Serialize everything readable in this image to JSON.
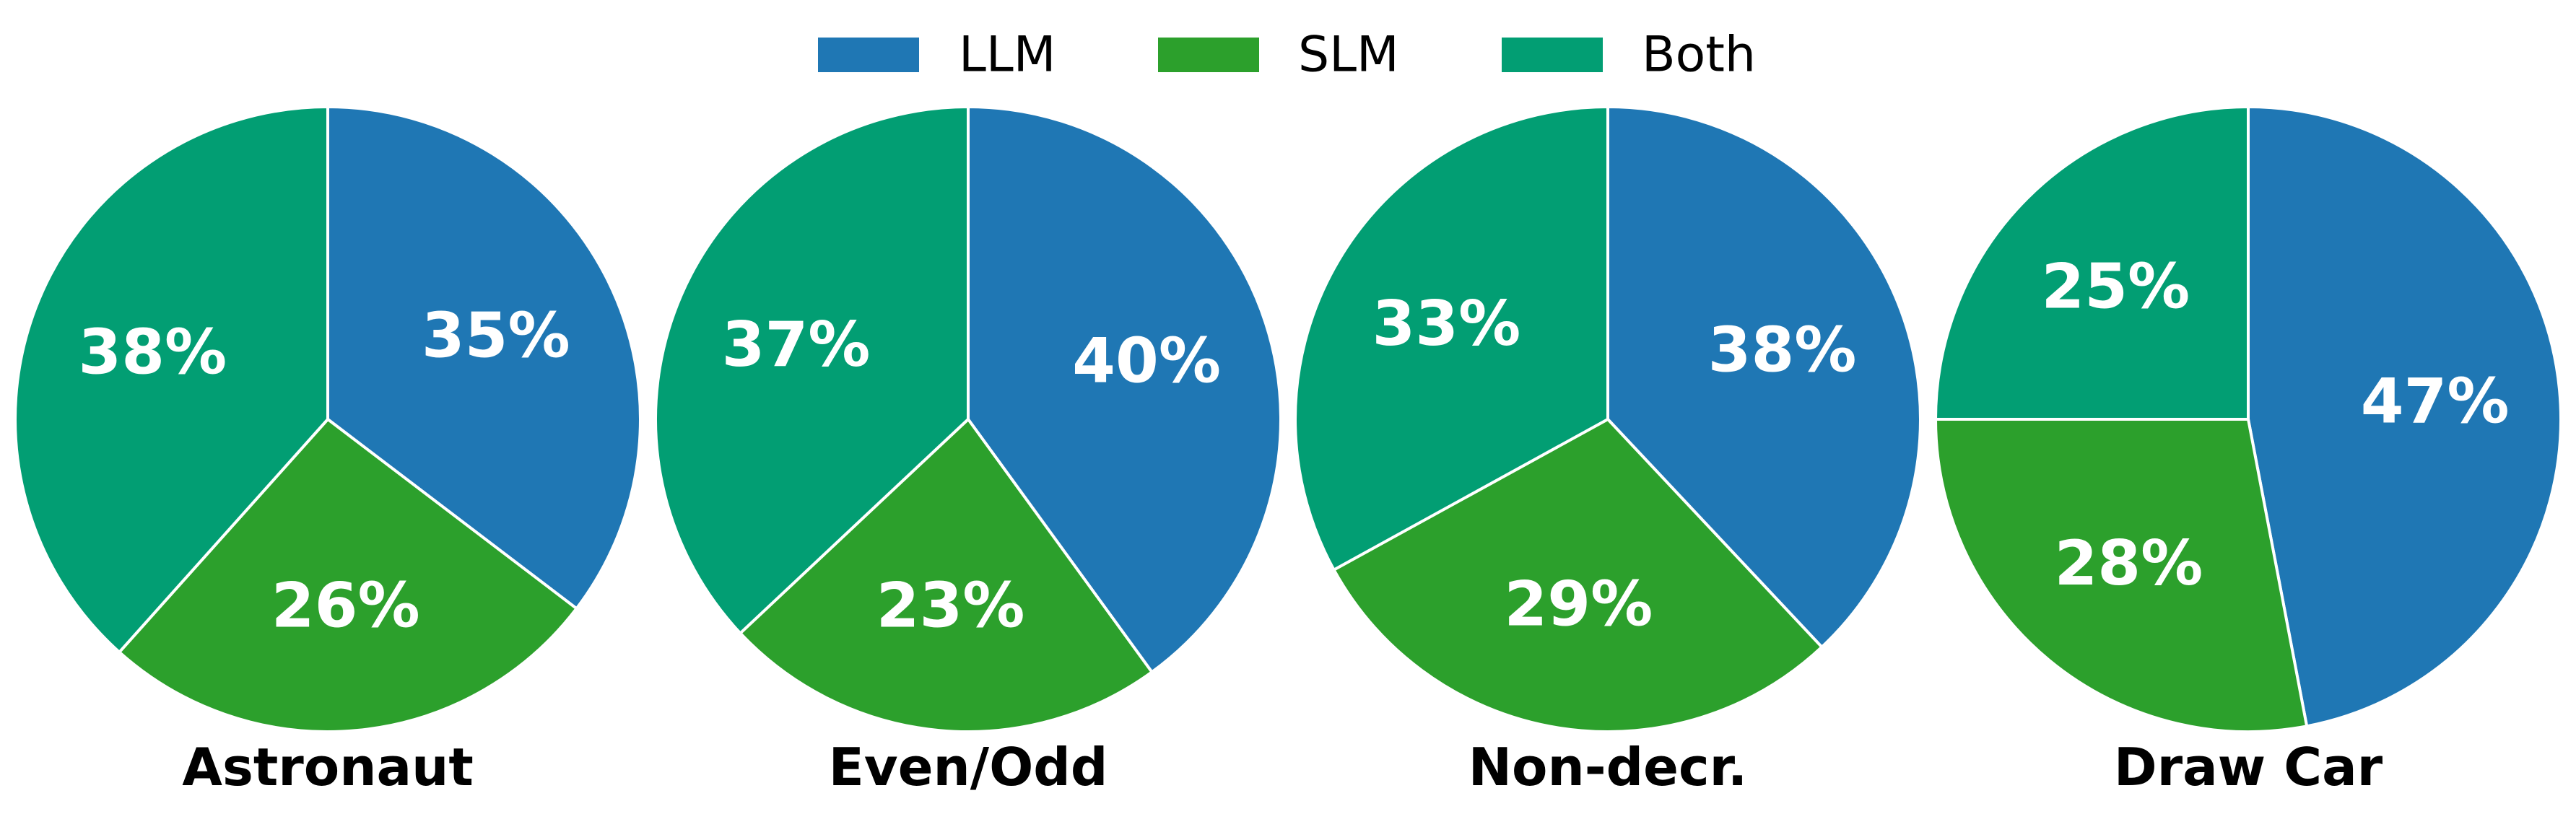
{
  "legend": {
    "placement": "top-center",
    "entries": [
      {
        "label": "LLM",
        "color": "#1f77b4"
      },
      {
        "label": "SLM",
        "color": "#2ca02c"
      },
      {
        "label": "Both",
        "color": "#029e73"
      }
    ]
  },
  "chart_data": [
    {
      "type": "pie",
      "title": "Astronaut",
      "slices": [
        {
          "label": "LLM",
          "value": 35,
          "text": "35%"
        },
        {
          "label": "SLM",
          "value": 26,
          "text": "26%"
        },
        {
          "label": "Both",
          "value": 38,
          "text": "38%"
        }
      ]
    },
    {
      "type": "pie",
      "title": "Even/Odd",
      "slices": [
        {
          "label": "LLM",
          "value": 40,
          "text": "40%"
        },
        {
          "label": "SLM",
          "value": 23,
          "text": "23%"
        },
        {
          "label": "Both",
          "value": 37,
          "text": "37%"
        }
      ]
    },
    {
      "type": "pie",
      "title": "Non-decr.",
      "slices": [
        {
          "label": "LLM",
          "value": 38,
          "text": "38%"
        },
        {
          "label": "SLM",
          "value": 29,
          "text": "29%"
        },
        {
          "label": "Both",
          "value": 33,
          "text": "33%"
        }
      ]
    },
    {
      "type": "pie",
      "title": "Draw Car",
      "slices": [
        {
          "label": "LLM",
          "value": 47,
          "text": "47%"
        },
        {
          "label": "SLM",
          "value": 28,
          "text": "28%"
        },
        {
          "label": "Both",
          "value": 25,
          "text": "25%"
        }
      ]
    }
  ]
}
